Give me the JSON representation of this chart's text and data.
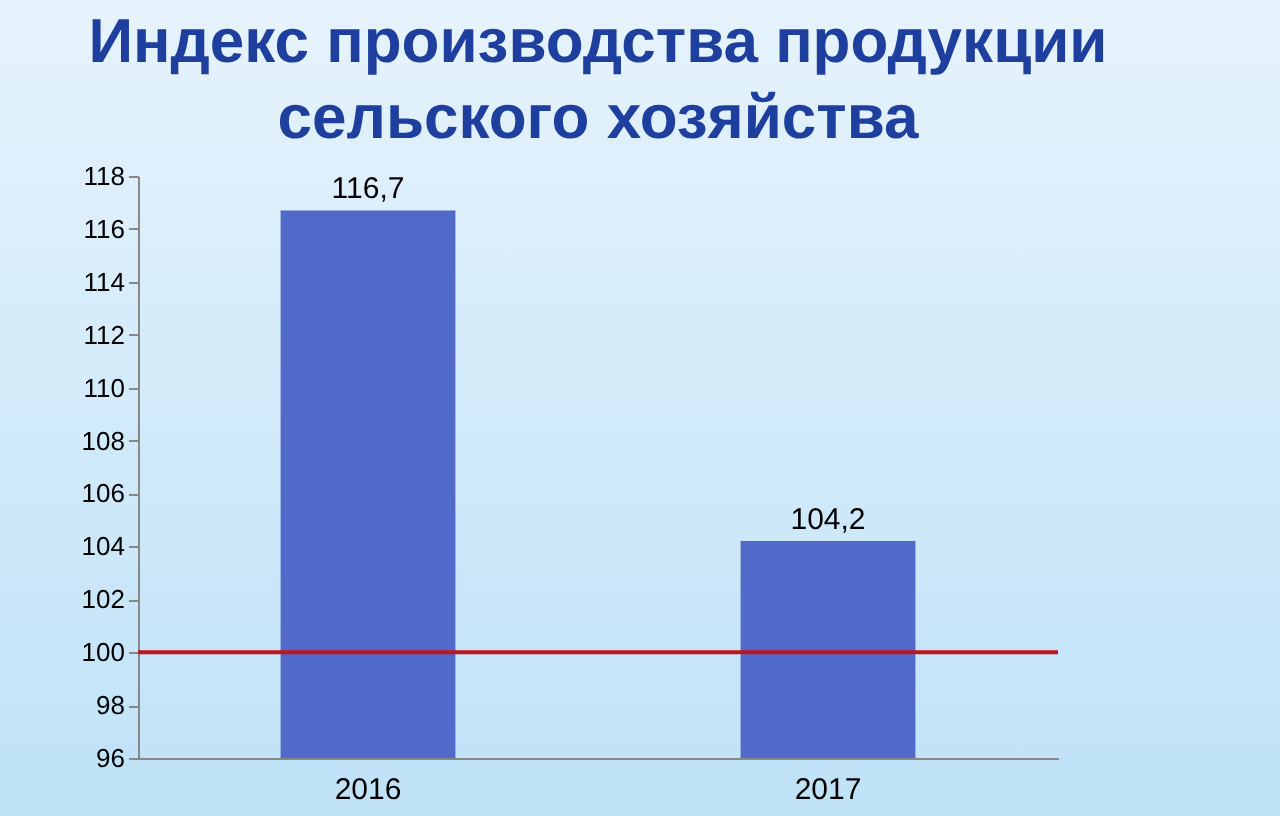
{
  "chart_data": {
    "type": "bar",
    "title": "Индекс производства продукции\nсельского хозяйства",
    "categories": [
      "2016",
      "2017"
    ],
    "values": [
      116.7,
      104.2
    ],
    "color": "#5169c8",
    "value_labels": [
      "116,7",
      "104,2"
    ],
    "ylim": [
      96,
      118
    ],
    "yticks": [
      96,
      98,
      100,
      102,
      104,
      106,
      108,
      110,
      112,
      114,
      116,
      118
    ],
    "grid": false,
    "ref_lines": [
      {
        "axis": "y",
        "value": 100,
        "color": "#c0141e"
      }
    ]
  }
}
